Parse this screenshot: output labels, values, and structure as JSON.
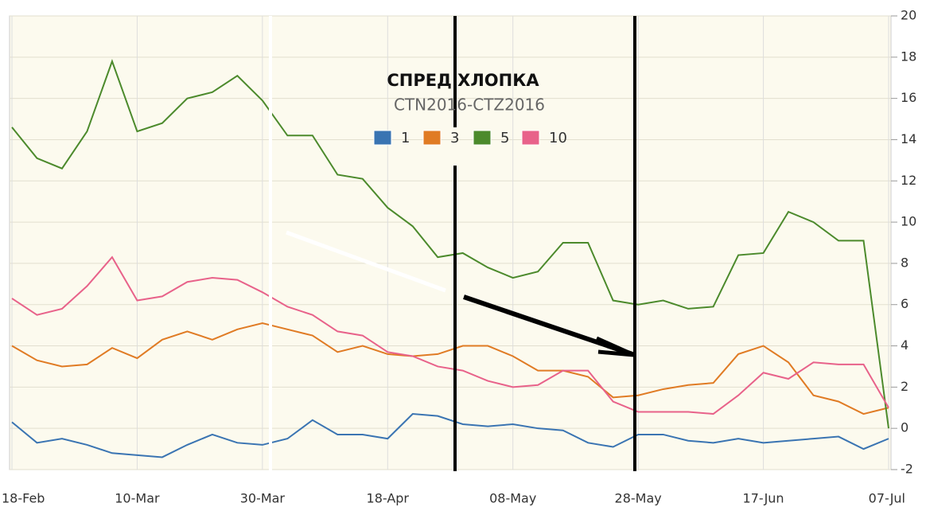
{
  "chart_data": {
    "type": "line",
    "title": "СПРЕД ХЛОПКА",
    "subtitle": "CTN2016-CTZ2016",
    "x": [
      0,
      4,
      8,
      12,
      16,
      20,
      24,
      28,
      32,
      36,
      40,
      44,
      48,
      52,
      56,
      60,
      64,
      68,
      72,
      76,
      80,
      84,
      88,
      92,
      96,
      100,
      104,
      108,
      112,
      116,
      120,
      124,
      128,
      132,
      136,
      140
    ],
    "xlim": [
      0,
      140
    ],
    "xticks": [
      {
        "value": 0,
        "label": "18-Feb"
      },
      {
        "value": 20,
        "label": "10-Mar"
      },
      {
        "value": 40,
        "label": "30-Mar"
      },
      {
        "value": 60,
        "label": "18-Apr"
      },
      {
        "value": 80,
        "label": "08-May"
      },
      {
        "value": 100,
        "label": "28-May"
      },
      {
        "value": 120,
        "label": "17-Jun"
      },
      {
        "value": 140,
        "label": "07-Jul"
      }
    ],
    "ylim": [
      -2,
      20
    ],
    "yticks": [
      -2,
      0,
      2,
      4,
      6,
      8,
      10,
      12,
      14,
      16,
      18,
      20
    ],
    "grid": true,
    "legend": "top",
    "series": [
      {
        "name": "1",
        "color": "#3a74b2",
        "values": [
          0.3,
          -0.7,
          -0.5,
          -0.8,
          -1.2,
          -1.3,
          -1.4,
          -0.8,
          -0.3,
          -0.7,
          -0.8,
          -0.5,
          0.4,
          -0.3,
          -0.3,
          -0.5,
          0.7,
          0.6,
          0.2,
          0.1,
          0.2,
          0.0,
          -0.1,
          -0.7,
          -0.9,
          -0.3,
          -0.3,
          -0.6,
          -0.7,
          -0.5,
          -0.7,
          -0.6,
          -0.5,
          -0.4,
          -1.0,
          -0.5
        ]
      },
      {
        "name": "3",
        "color": "#e07b24",
        "values": [
          4.0,
          3.3,
          3.0,
          3.1,
          3.9,
          3.4,
          4.3,
          4.7,
          4.3,
          4.8,
          5.1,
          4.8,
          4.5,
          3.7,
          4.0,
          3.6,
          3.5,
          3.6,
          4.0,
          4.0,
          3.5,
          2.8,
          2.8,
          2.5,
          1.5,
          1.6,
          1.9,
          2.1,
          2.2,
          3.6,
          4.0,
          3.2,
          1.6,
          1.3,
          0.7,
          1.0
        ]
      },
      {
        "name": "5",
        "color": "#4c8a2c",
        "values": [
          14.6,
          13.1,
          12.6,
          14.4,
          17.8,
          14.4,
          14.8,
          16.0,
          16.3,
          17.1,
          15.9,
          14.2,
          14.2,
          12.3,
          12.1,
          10.7,
          9.8,
          8.3,
          8.5,
          7.8,
          7.3,
          7.6,
          9.0,
          9.0,
          6.2,
          6.0,
          6.2,
          5.8,
          5.9,
          8.4,
          8.5,
          10.5,
          10.0,
          9.1,
          9.1,
          0.0
        ]
      },
      {
        "name": "10",
        "color": "#e8628a",
        "values": [
          6.3,
          5.5,
          5.8,
          6.9,
          8.3,
          6.2,
          6.4,
          7.1,
          7.3,
          7.2,
          6.6,
          5.9,
          5.5,
          4.7,
          4.5,
          3.7,
          3.5,
          3.0,
          2.8,
          2.3,
          2.0,
          2.1,
          2.8,
          2.8,
          1.3,
          0.8,
          0.8,
          0.8,
          0.7,
          1.6,
          2.7,
          2.4,
          3.2,
          3.1,
          3.1,
          1.0
        ]
      }
    ]
  }
}
